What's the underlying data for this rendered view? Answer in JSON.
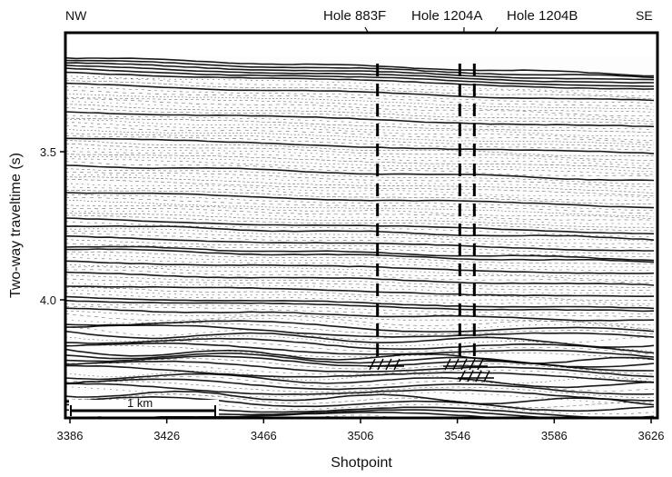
{
  "figure": {
    "dir_left": "NW",
    "dir_right": "SE",
    "xlabel": "Shotpoint",
    "ylabel": "Two-way traveltime (s)",
    "scale_bar_label": "1 km"
  },
  "x_ticks": [
    "3386",
    "3426",
    "3466",
    "3506",
    "3546",
    "3586",
    "3626"
  ],
  "y_ticks": [
    "3.5",
    "4.0"
  ],
  "holes": [
    {
      "label": "Hole 883F",
      "shotpoint": 3513
    },
    {
      "label": "Hole 1204A",
      "shotpoint": 3547
    },
    {
      "label": "Hole 1204B",
      "shotpoint": 3553
    }
  ],
  "chart_data": {
    "type": "scatter",
    "title": "",
    "xlabel": "Shotpoint",
    "ylabel": "Two-way traveltime (s)",
    "xlim": [
      3386,
      3626
    ],
    "ylim": [
      4.4,
      3.1
    ],
    "x_ticks": [
      3386,
      3426,
      3466,
      3506,
      3546,
      3586,
      3626
    ],
    "y_ticks": [
      3.5,
      4.0
    ],
    "annotations": [
      "NW",
      "SE",
      "Hole 883F",
      "Hole 1204A",
      "Hole 1204B",
      "1 km"
    ],
    "holes": [
      {
        "name": "Hole 883F",
        "shotpoint": 3513
      },
      {
        "name": "Hole 1204A",
        "shotpoint": 3547
      },
      {
        "name": "Hole 1204B",
        "shotpoint": 3553
      }
    ]
  }
}
